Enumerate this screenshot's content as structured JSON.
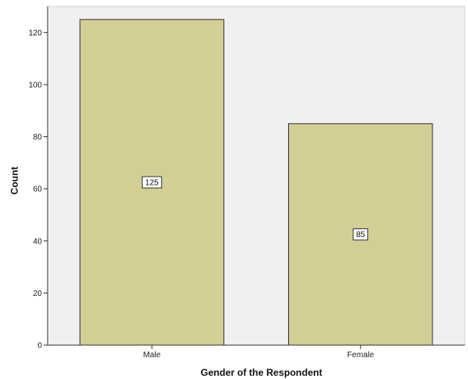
{
  "chart_data": {
    "type": "bar",
    "categories": [
      "Male",
      "Female"
    ],
    "values": [
      125,
      85
    ],
    "data_labels": [
      "125",
      "85"
    ],
    "title": "",
    "xlabel": "Gender of the Respondent",
    "ylabel": "Count",
    "ylim": [
      0,
      130
    ],
    "yticks": [
      0,
      20,
      40,
      60,
      80,
      100,
      120
    ],
    "ytick_labels": [
      "0",
      "20",
      "40",
      "60",
      "80",
      "100",
      "120"
    ],
    "grid": false,
    "legend": "none",
    "colors": {
      "bar_fill": "#d3ce96",
      "bar_stroke": "#333333",
      "plot_background": "#f0f0f0",
      "page_background": "#ffffff"
    }
  }
}
